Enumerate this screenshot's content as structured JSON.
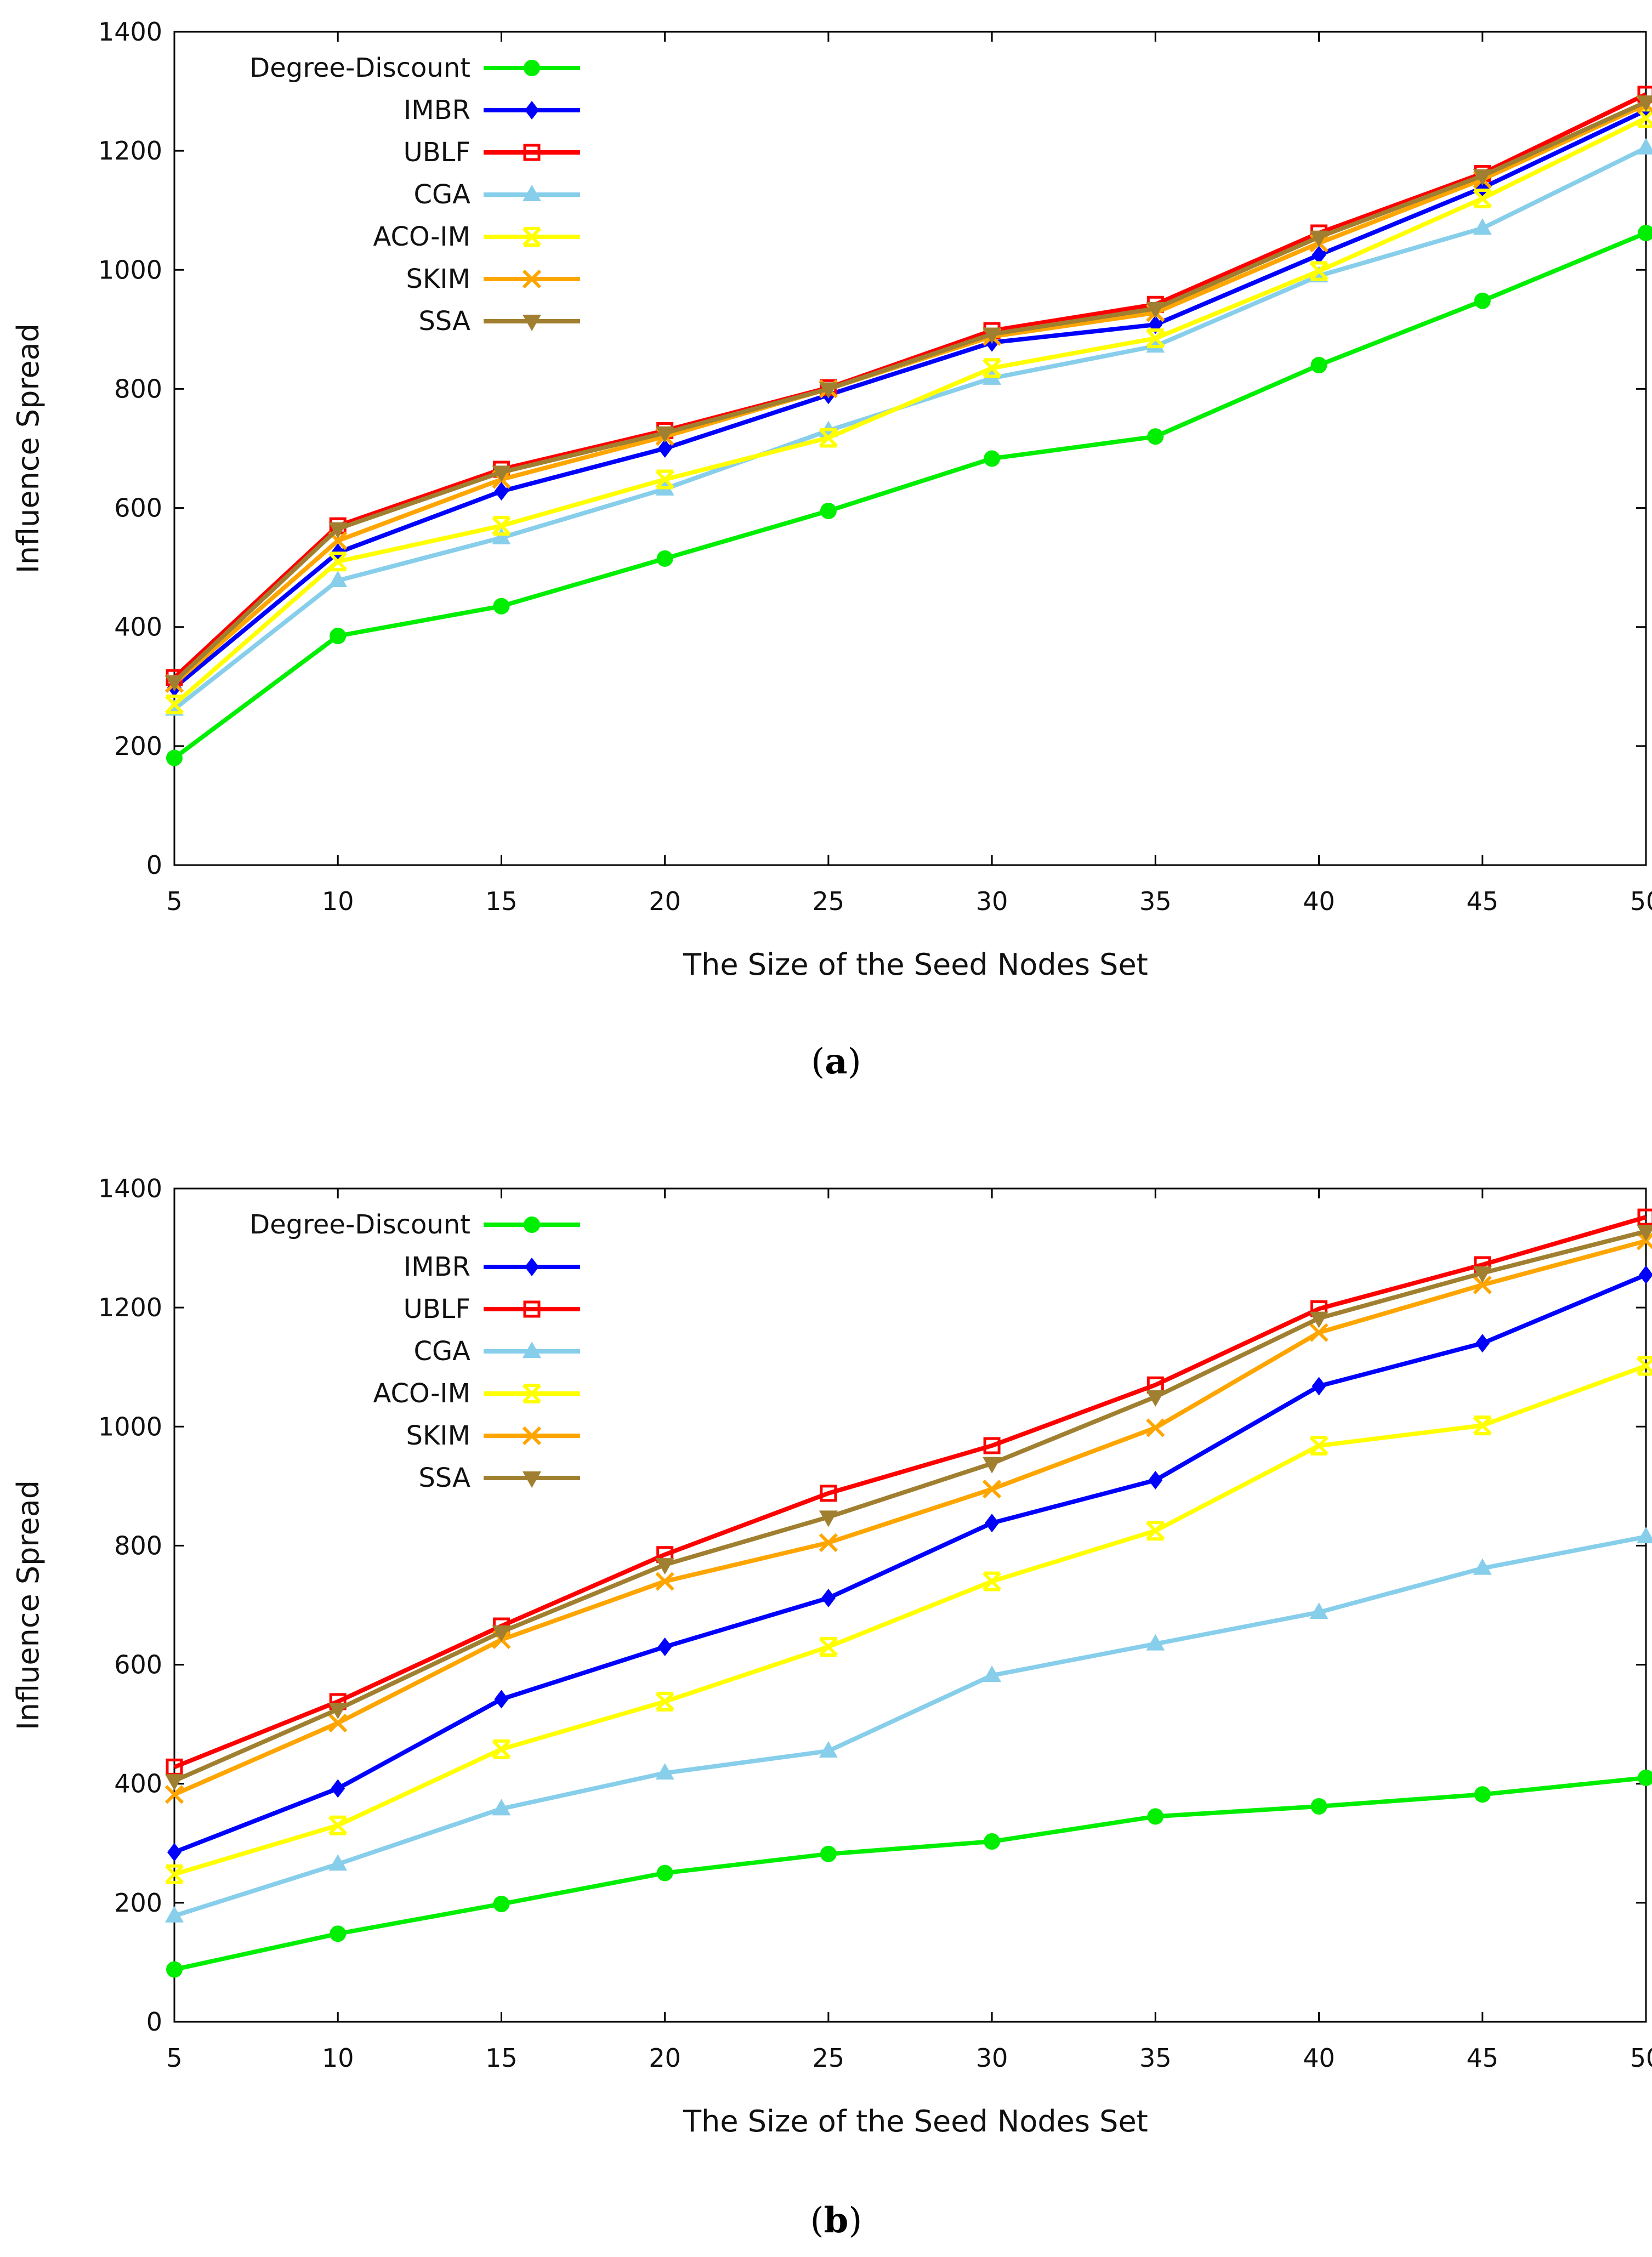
{
  "chart_data": [
    {
      "type": "line",
      "caption": "a",
      "xlabel": "The Size of the Seed Nodes Set",
      "ylabel": "Influence Spread",
      "x": [
        5,
        10,
        15,
        20,
        25,
        30,
        35,
        40,
        45,
        50
      ],
      "xlim": [
        5,
        50
      ],
      "ylim": [
        0,
        1400
      ],
      "xticks": [
        5,
        10,
        15,
        20,
        25,
        30,
        35,
        40,
        45,
        50
      ],
      "yticks": [
        0,
        200,
        400,
        600,
        800,
        1000,
        1200,
        1400
      ],
      "grid": false,
      "legend_position": "top-left",
      "series": [
        {
          "name": "Degree-Discount",
          "color": "#00ee00",
          "marker": "circle",
          "values": [
            180,
            385,
            435,
            515,
            595,
            683,
            720,
            840,
            948,
            1062
          ]
        },
        {
          "name": "IMBR",
          "color": "#0000ff",
          "marker": "diamond",
          "values": [
            298,
            525,
            628,
            700,
            790,
            878,
            908,
            1025,
            1138,
            1268
          ]
        },
        {
          "name": "UBLF",
          "color": "#ff0000",
          "marker": "open-square",
          "values": [
            315,
            570,
            665,
            730,
            802,
            898,
            942,
            1062,
            1162,
            1295
          ]
        },
        {
          "name": "CGA",
          "color": "#87ceeb",
          "marker": "triangle",
          "values": [
            262,
            478,
            550,
            632,
            730,
            818,
            872,
            990,
            1070,
            1205
          ]
        },
        {
          "name": "ACO-IM",
          "color": "#ffff00",
          "marker": "x-square",
          "values": [
            270,
            510,
            570,
            648,
            718,
            835,
            885,
            998,
            1120,
            1255
          ]
        },
        {
          "name": "SKIM",
          "color": "#ffa500",
          "marker": "cross",
          "values": [
            305,
            545,
            648,
            720,
            800,
            888,
            928,
            1045,
            1152,
            1278
          ]
        },
        {
          "name": "SSA",
          "color": "#a08030",
          "marker": "triangle-down",
          "values": [
            308,
            565,
            660,
            726,
            800,
            892,
            935,
            1055,
            1158,
            1282
          ]
        }
      ]
    },
    {
      "type": "line",
      "caption": "b",
      "xlabel": "The Size of the Seed Nodes Set",
      "ylabel": "Influence Spread",
      "x": [
        5,
        10,
        15,
        20,
        25,
        30,
        35,
        40,
        45,
        50
      ],
      "xlim": [
        5,
        50
      ],
      "ylim": [
        0,
        1400
      ],
      "xticks": [
        5,
        10,
        15,
        20,
        25,
        30,
        35,
        40,
        45,
        50
      ],
      "yticks": [
        0,
        200,
        400,
        600,
        800,
        1000,
        1200,
        1400
      ],
      "grid": false,
      "legend_position": "top-left",
      "series": [
        {
          "name": "Degree-Discount",
          "color": "#00ee00",
          "marker": "circle",
          "values": [
            88,
            148,
            198,
            250,
            282,
            303,
            345,
            362,
            382,
            410
          ]
        },
        {
          "name": "IMBR",
          "color": "#0000ff",
          "marker": "diamond",
          "values": [
            285,
            392,
            542,
            630,
            712,
            838,
            910,
            1068,
            1140,
            1255
          ]
        },
        {
          "name": "UBLF",
          "color": "#ff0000",
          "marker": "open-square",
          "values": [
            428,
            538,
            665,
            785,
            888,
            968,
            1070,
            1198,
            1272,
            1352
          ]
        },
        {
          "name": "CGA",
          "color": "#87ceeb",
          "marker": "triangle",
          "values": [
            178,
            265,
            358,
            418,
            455,
            582,
            635,
            688,
            762,
            815
          ]
        },
        {
          "name": "ACO-IM",
          "color": "#ffff00",
          "marker": "x-square",
          "values": [
            248,
            330,
            458,
            538,
            630,
            740,
            825,
            968,
            1002,
            1102
          ]
        },
        {
          "name": "SKIM",
          "color": "#ffa500",
          "marker": "cross",
          "values": [
            382,
            502,
            642,
            740,
            805,
            895,
            998,
            1158,
            1238,
            1312
          ]
        },
        {
          "name": "SSA",
          "color": "#a08030",
          "marker": "triangle-down",
          "values": [
            405,
            525,
            655,
            768,
            848,
            938,
            1050,
            1182,
            1258,
            1328
          ]
        }
      ]
    }
  ]
}
